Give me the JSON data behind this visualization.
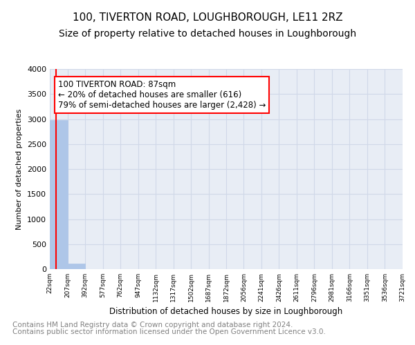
{
  "title1": "100, TIVERTON ROAD, LOUGHBOROUGH, LE11 2RZ",
  "title2": "Size of property relative to detached houses in Loughborough",
  "xlabel": "Distribution of detached houses by size in Loughborough",
  "ylabel": "Number of detached properties",
  "bin_edges": [
    22,
    207,
    392,
    577,
    762,
    947,
    1132,
    1317,
    1502,
    1687,
    1872,
    2056,
    2241,
    2426,
    2611,
    2796,
    2981,
    3166,
    3351,
    3536,
    3721
  ],
  "bin_edge_labels": [
    "22sqm",
    "207sqm",
    "392sqm",
    "577sqm",
    "762sqm",
    "947sqm",
    "1132sqm",
    "1317sqm",
    "1502sqm",
    "1687sqm",
    "1872sqm",
    "2056sqm",
    "2241sqm",
    "2426sqm",
    "2611sqm",
    "2796sqm",
    "2981sqm",
    "3166sqm",
    "3351sqm",
    "3536sqm",
    "3721sqm"
  ],
  "bar_heights": [
    2980,
    110,
    0,
    0,
    0,
    0,
    0,
    0,
    0,
    0,
    0,
    0,
    0,
    0,
    0,
    0,
    0,
    0,
    0,
    0
  ],
  "bar_color": "#aec6e8",
  "bar_edge_color": "#aec6e8",
  "annotation_text": "100 TIVERTON ROAD: 87sqm\n← 20% of detached houses are smaller (616)\n79% of semi-detached houses are larger (2,428) →",
  "annotation_box_color": "white",
  "annotation_box_edge_color": "red",
  "property_size": 87,
  "vline_color": "red",
  "ylim": [
    0,
    4000
  ],
  "yticks": [
    0,
    500,
    1000,
    1500,
    2000,
    2500,
    3000,
    3500,
    4000
  ],
  "grid_color": "#d0d8e8",
  "background_color": "#e8edf5",
  "footnote1": "Contains HM Land Registry data © Crown copyright and database right 2024.",
  "footnote2": "Contains public sector information licensed under the Open Government Licence v3.0.",
  "title1_fontsize": 11,
  "title2_fontsize": 10,
  "annotation_fontsize": 8.5,
  "footnote_fontsize": 7.5
}
